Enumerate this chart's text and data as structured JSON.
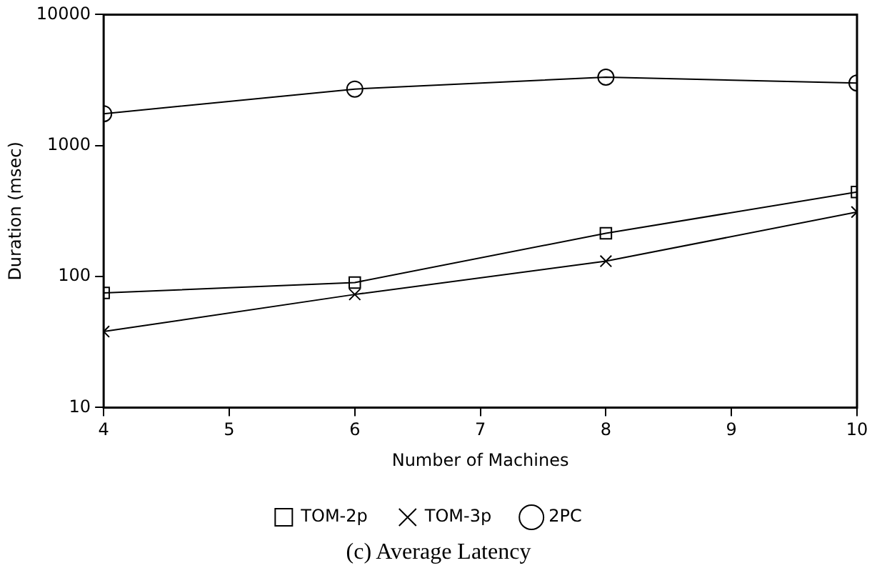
{
  "chart_data": {
    "type": "line",
    "title": "(c) Average Latency",
    "xlabel": "Number of Machines",
    "ylabel": "Duration (msec)",
    "x": [
      4,
      6,
      8,
      10
    ],
    "series": [
      {
        "name": "TOM-2p",
        "color": "#000000",
        "marker": "square",
        "values": [
          75,
          90,
          214,
          442
        ]
      },
      {
        "name": "TOM-3p",
        "color": "#000000",
        "marker": "cross",
        "values": [
          38,
          73,
          131,
          311
        ]
      },
      {
        "name": "2PC",
        "color": "#000000",
        "marker": "circle",
        "values": [
          1750,
          2700,
          3330,
          3000
        ]
      }
    ],
    "log": "y",
    "xlim": [
      4,
      10
    ],
    "xticks": [
      4,
      5,
      6,
      7,
      8,
      9,
      10
    ],
    "ylim": [
      10,
      10000
    ],
    "yticks": [
      10,
      100,
      1000,
      10000
    ],
    "grid": false,
    "legend": "bottom",
    "line_style": "solid"
  }
}
